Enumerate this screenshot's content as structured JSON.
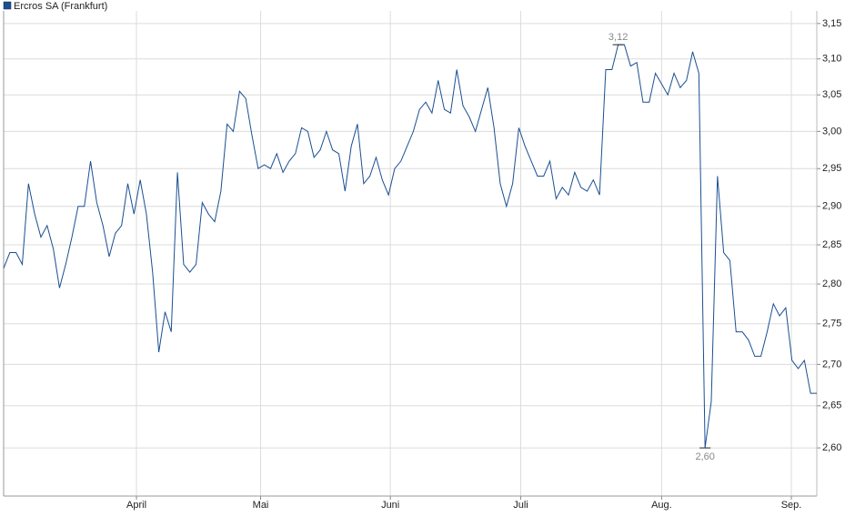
{
  "chart_data": {
    "type": "line",
    "log_scale": true,
    "grid": true,
    "legend": "top-left",
    "series": [
      {
        "name": "Ercros SA (Frankfurt)",
        "color": "#1a4f91",
        "values": [
          2.82,
          2.84,
          2.84,
          2.825,
          2.93,
          2.89,
          2.86,
          2.875,
          2.845,
          2.795,
          2.825,
          2.86,
          2.9,
          2.9,
          2.96,
          2.905,
          2.875,
          2.835,
          2.865,
          2.875,
          2.93,
          2.89,
          2.935,
          2.89,
          2.815,
          2.715,
          2.765,
          2.74,
          2.945,
          2.825,
          2.815,
          2.825,
          2.905,
          2.89,
          2.88,
          2.92,
          3.01,
          3.0,
          3.055,
          3.045,
          2.995,
          2.95,
          2.955,
          2.95,
          2.97,
          2.945,
          2.96,
          2.97,
          3.005,
          3.0,
          2.965,
          2.975,
          3.0,
          2.975,
          2.97,
          2.92,
          2.98,
          3.01,
          2.93,
          2.94,
          2.965,
          2.935,
          2.915,
          2.95,
          2.96,
          2.98,
          3.0,
          3.03,
          3.04,
          3.025,
          3.07,
          3.03,
          3.025,
          3.085,
          3.035,
          3.02,
          3.0,
          3.03,
          3.06,
          3.005,
          2.93,
          2.9,
          2.93,
          3.005,
          2.98,
          2.96,
          2.94,
          2.94,
          2.96,
          2.91,
          2.925,
          2.915,
          2.945,
          2.925,
          2.92,
          2.935,
          2.915,
          3.085,
          3.085,
          3.12,
          3.12,
          3.09,
          3.095,
          3.04,
          3.04,
          3.08,
          3.065,
          3.05,
          3.08,
          3.06,
          3.07,
          3.11,
          3.08,
          2.6,
          2.655,
          2.94,
          2.84,
          2.83,
          2.74,
          2.74,
          2.73,
          2.71,
          2.71,
          2.74,
          2.775,
          2.76,
          2.77,
          2.705,
          2.695,
          2.705,
          2.665,
          2.665
        ]
      }
    ],
    "annotations": [
      {
        "x": 99,
        "label": "3,12"
      },
      {
        "x": 113,
        "label": "2,60"
      }
    ],
    "xlim": [
      0,
      131
    ],
    "xticks": [
      {
        "value": 21.4,
        "label": "April"
      },
      {
        "value": 41.4,
        "label": "Mai"
      },
      {
        "value": 62.3,
        "label": "Juni"
      },
      {
        "value": 83.3,
        "label": "Juli"
      },
      {
        "value": 106,
        "label": "Aug."
      },
      {
        "value": 126.9,
        "label": "Sep."
      }
    ],
    "ylim": [
      2.544,
      3.168
    ],
    "yticks": [
      {
        "value": 2.6,
        "label": "2,60"
      },
      {
        "value": 2.65,
        "label": "2,65"
      },
      {
        "value": 2.7,
        "label": "2,70"
      },
      {
        "value": 2.75,
        "label": "2,75"
      },
      {
        "value": 2.8,
        "label": "2,80"
      },
      {
        "value": 2.85,
        "label": "2,85"
      },
      {
        "value": 2.9,
        "label": "2,90"
      },
      {
        "value": 2.95,
        "label": "2,95"
      },
      {
        "value": 3.0,
        "label": "3,00"
      },
      {
        "value": 3.05,
        "label": "3,05"
      },
      {
        "value": 3.1,
        "label": "3,10"
      },
      {
        "value": 3.15,
        "label": "3,15"
      }
    ]
  }
}
